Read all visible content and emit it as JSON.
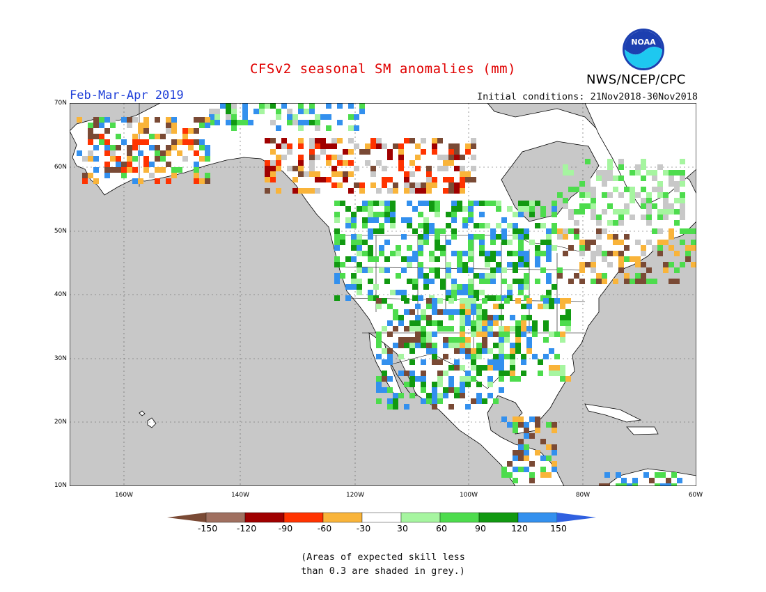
{
  "header": {
    "title": "CFSv2 seasonal SM anomalies (mm)",
    "period": "Feb-Mar-Apr 2019",
    "initial_conditions": "Initial conditions: 21Nov2018-30Nov2018",
    "agency": "NWS/NCEP/CPC",
    "logo_text": "NOAA"
  },
  "map": {
    "lat_labels": [
      "70N",
      "60N",
      "50N",
      "40N",
      "30N",
      "20N",
      "10N"
    ],
    "lon_labels": [
      "160W",
      "140W",
      "120W",
      "100W",
      "80W",
      "60W"
    ],
    "ocean_color": "#c8c8c8",
    "land_color": "#ffffff"
  },
  "legend": {
    "tick_labels": [
      "-150",
      "-120",
      "-90",
      "-60",
      "-30",
      "30",
      "60",
      "90",
      "120",
      "150"
    ],
    "colors": [
      "#7a4a35",
      "#a07060",
      "#a00000",
      "#ff3300",
      "#f9b43a",
      "#ffffff",
      "#a6f5a0",
      "#4ddc4d",
      "#119911",
      "#3390ee",
      "#3060e0"
    ]
  },
  "footnote": {
    "line1": "(Areas of expected skill less",
    "line2": "than 0.3 are shaded in grey.)"
  }
}
